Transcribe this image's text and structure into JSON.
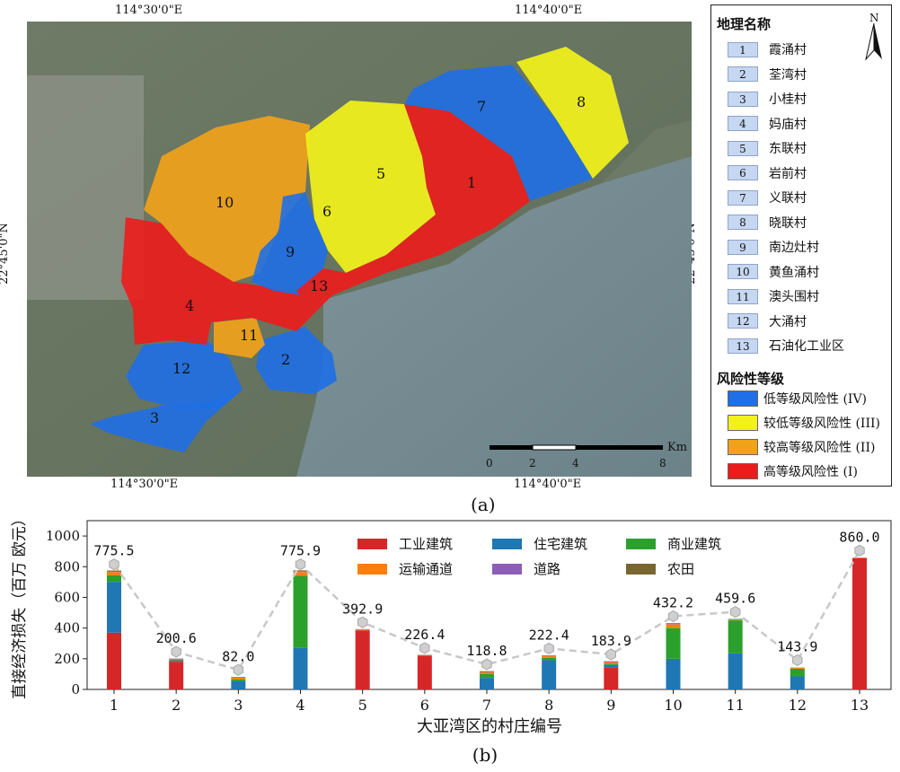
{
  "map": {
    "coord_top_left": "114°30'0\"E",
    "coord_top_right": "114°40'0\"E",
    "coord_bottom_left": "114°30'0\"E",
    "coord_bottom_right": "114°40'0\"E",
    "coord_left": "22°45'0\"N",
    "coord_right": "22°45'0\"N",
    "north_label": "N",
    "scale_unit": "Km",
    "scale_ticks": [
      "0",
      "2",
      "4",
      "8"
    ],
    "region_labels": [
      "1",
      "2",
      "3",
      "4",
      "5",
      "6",
      "7",
      "8",
      "9",
      "10",
      "11",
      "12",
      "13"
    ],
    "legend_title_places": "地理名称",
    "places": [
      {
        "num": "1",
        "name": "霞涌村"
      },
      {
        "num": "2",
        "name": "荃湾村"
      },
      {
        "num": "3",
        "name": "小桂村"
      },
      {
        "num": "4",
        "name": "妈庙村"
      },
      {
        "num": "5",
        "name": "东联村"
      },
      {
        "num": "6",
        "name": "岩前村"
      },
      {
        "num": "7",
        "name": "义联村"
      },
      {
        "num": "8",
        "name": "晓联村"
      },
      {
        "num": "9",
        "name": "南边灶村"
      },
      {
        "num": "10",
        "name": "黄鱼涌村"
      },
      {
        "num": "11",
        "name": "澳头围村"
      },
      {
        "num": "12",
        "name": "大涌村"
      },
      {
        "num": "13",
        "name": "石油化工业区"
      }
    ],
    "legend_title_risk": "风险性等级",
    "risk_levels": [
      {
        "label": "低等级风险性 (IV)",
        "color": "#1f6fe6"
      },
      {
        "label": "较低等级风险性 (III)",
        "color": "#f2f21a"
      },
      {
        "label": "较高等级风险性 (II)",
        "color": "#f0a21a"
      },
      {
        "label": "高等级风险性 (I)",
        "color": "#ec1c1c"
      }
    ],
    "panel_label": "(a)"
  },
  "chart_data": {
    "type": "bar",
    "stacked": true,
    "categories": [
      "1",
      "2",
      "3",
      "4",
      "5",
      "6",
      "7",
      "8",
      "9",
      "10",
      "11",
      "12",
      "13"
    ],
    "series": [
      {
        "name": "工业建筑",
        "color": "#d62728",
        "values": [
          370,
          180,
          0,
          0,
          385,
          220,
          0,
          0,
          145,
          0,
          0,
          0,
          855
        ]
      },
      {
        "name": "住宅建筑",
        "color": "#1f77b4",
        "values": [
          330,
          10,
          55,
          270,
          0,
          0,
          75,
          190,
          15,
          200,
          235,
          85,
          0
        ]
      },
      {
        "name": "商业建筑",
        "color": "#2ca02c",
        "values": [
          45,
          0,
          10,
          470,
          0,
          0,
          25,
          15,
          8,
          200,
          215,
          50,
          0
        ]
      },
      {
        "name": "运输通道",
        "color": "#ff7f0e",
        "values": [
          20,
          5,
          12,
          25,
          5,
          4,
          12,
          12,
          10,
          25,
          5,
          5,
          3
        ]
      },
      {
        "name": "道路",
        "color": "#8c5eb5",
        "values": [
          5,
          4,
          3,
          6,
          2,
          2,
          5,
          3,
          4,
          5,
          3,
          2,
          1
        ]
      },
      {
        "name": "农田",
        "color": "#7a6630",
        "values": [
          5,
          2,
          2,
          5,
          1,
          0,
          2,
          2,
          2,
          2,
          2,
          1,
          1
        ]
      }
    ],
    "totals": [
      775.5,
      200.6,
      82.0,
      775.9,
      392.9,
      226.4,
      118.8,
      222.4,
      183.9,
      432.2,
      459.6,
      143.9,
      860.0
    ],
    "total_labels": [
      "775.5",
      "200.6",
      "82.0",
      "775.9",
      "392.9",
      "226.4",
      "118.8",
      "222.4",
      "183.9",
      "432.2",
      "459.6",
      "143.9",
      "860.0"
    ],
    "trend_values": [
      815,
      245,
      127,
      815,
      437,
      270,
      163,
      267,
      228,
      477,
      505,
      190,
      905
    ],
    "xlabel": "大亚湾区的村庄编号",
    "ylabel": "直接经济损失（百万 欧元）",
    "ylim": [
      0,
      1100
    ],
    "yticks": [
      "0",
      "200",
      "400",
      "600",
      "800",
      "1000"
    ],
    "legend_position": "top-center",
    "panel_label": "(b)"
  }
}
